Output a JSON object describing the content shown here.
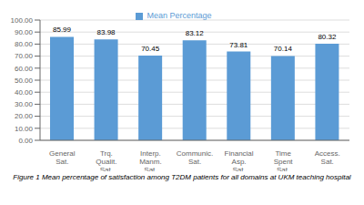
{
  "chart_data": {
    "type": "bar",
    "legend_label": "Mean Percentage",
    "caption": "Figure 1 Mean percentage of satisfaction among T2DM patients for all domains at UKM teaching hospital",
    "categories": [
      "General Sat.",
      "Trq. Qualit. Sat.",
      "Interp. Manm. Sat.",
      "Communic. Sat.",
      "Financial Asp. Sat.",
      "Time Spent Sat.",
      "Access. Sat."
    ],
    "values": [
      85.99,
      83.98,
      70.45,
      83.12,
      73.81,
      70.14,
      80.32
    ],
    "color": "#5B9BD5",
    "ylim": [
      0,
      100
    ],
    "yticks": [
      {
        "value": 0,
        "label": "0.00"
      },
      {
        "value": 10,
        "label": "10.00"
      },
      {
        "value": 20,
        "label": "20.00"
      },
      {
        "value": 30,
        "label": "30.00"
      },
      {
        "value": 40,
        "label": "40.00"
      },
      {
        "value": 50,
        "label": "50.00"
      },
      {
        "value": 60,
        "label": "60.00"
      },
      {
        "value": 70,
        "label": "70.00"
      },
      {
        "value": 80,
        "label": "80.00"
      },
      {
        "value": 90,
        "label": "90.00"
      },
      {
        "value": 100,
        "label": "100.00"
      }
    ],
    "grid": true,
    "legend": "top",
    "data_labels": true
  }
}
